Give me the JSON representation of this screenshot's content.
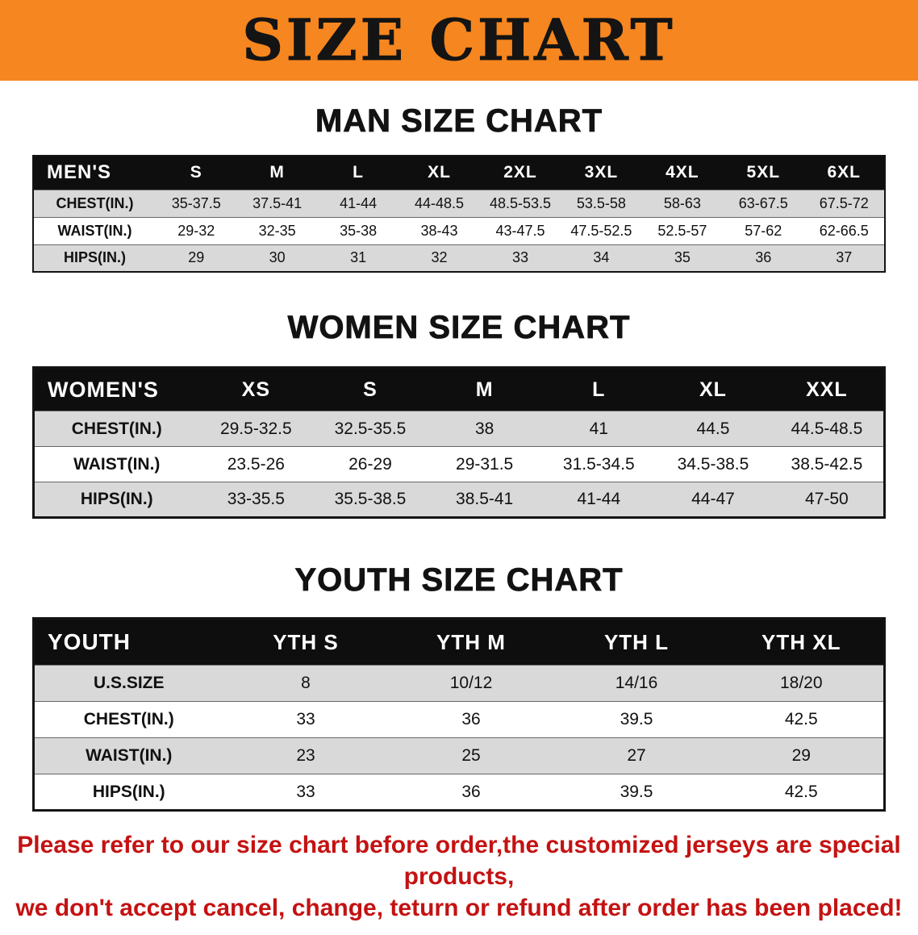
{
  "banner": {
    "title": "SIZE CHART",
    "background_color": "#f6861f",
    "text_color": "#141414"
  },
  "sections": [
    {
      "id": "men",
      "heading": "MAN SIZE CHART",
      "table": {
        "header": [
          "MEN'S",
          "S",
          "M",
          "L",
          "XL",
          "2XL",
          "3XL",
          "4XL",
          "5XL",
          "6XL"
        ],
        "rows": [
          [
            "CHEST(IN.)",
            "35-37.5",
            "37.5-41",
            "41-44",
            "44-48.5",
            "48.5-53.5",
            "53.5-58",
            "58-63",
            "63-67.5",
            "67.5-72"
          ],
          [
            "WAIST(IN.)",
            "29-32",
            "32-35",
            "35-38",
            "38-43",
            "43-47.5",
            "47.5-52.5",
            "52.5-57",
            "57-62",
            "62-66.5"
          ],
          [
            "HIPS(IN.)",
            "29",
            "30",
            "31",
            "32",
            "33",
            "34",
            "35",
            "36",
            "37"
          ]
        ]
      }
    },
    {
      "id": "women",
      "heading": "WOMEN SIZE CHART",
      "table": {
        "header": [
          "WOMEN'S",
          "XS",
          "S",
          "M",
          "L",
          "XL",
          "XXL"
        ],
        "rows": [
          [
            "CHEST(IN.)",
            "29.5-32.5",
            "32.5-35.5",
            "38",
            "41",
            "44.5",
            "44.5-48.5"
          ],
          [
            "WAIST(IN.)",
            "23.5-26",
            "26-29",
            "29-31.5",
            "31.5-34.5",
            "34.5-38.5",
            "38.5-42.5"
          ],
          [
            "HIPS(IN.)",
            "33-35.5",
            "35.5-38.5",
            "38.5-41",
            "41-44",
            "44-47",
            "47-50"
          ]
        ]
      }
    },
    {
      "id": "youth",
      "heading": "YOUTH SIZE CHART",
      "table": {
        "header": [
          "YOUTH",
          "YTH S",
          "YTH M",
          "YTH L",
          "YTH XL"
        ],
        "rows": [
          [
            "U.S.SIZE",
            "8",
            "10/12",
            "14/16",
            "18/20"
          ],
          [
            "CHEST(IN.)",
            "33",
            "36",
            "39.5",
            "42.5"
          ],
          [
            "WAIST(IN.)",
            "23",
            "25",
            "27",
            "29"
          ],
          [
            "HIPS(IN.)",
            "33",
            "36",
            "39.5",
            "42.5"
          ]
        ]
      }
    }
  ],
  "footer": {
    "lines": [
      "Please refer to our size chart before order,the customized jerseys are special products,",
      "we don't accept cancel, change, teturn or refund after order has been placed!"
    ],
    "text_color": "#c41212"
  },
  "colors": {
    "stripe_row": "#d9d9d9",
    "header_band": "#0e0e0e",
    "table_border": "#141414"
  }
}
